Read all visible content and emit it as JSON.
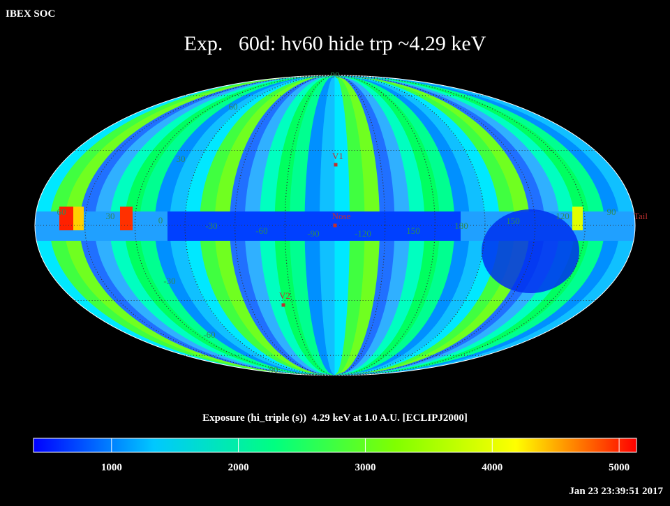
{
  "header": {
    "source": "IBEX SOC",
    "title": "Exp.   60d: hv60 hide trp ~4.29 keV",
    "timestamp": "Jan 23 23:39:51 2017"
  },
  "map": {
    "longitude_labels": [
      "60",
      "30",
      "0",
      "-30",
      "-60",
      "-90",
      "-120",
      "150",
      "180",
      "150",
      "120",
      "90"
    ],
    "latitude_labels": [
      "90",
      "60",
      "30",
      "-30",
      "-60",
      "-90"
    ],
    "markers": [
      {
        "label": "V1"
      },
      {
        "label": "Nose"
      },
      {
        "label": "V2"
      },
      {
        "label": "Tail"
      }
    ]
  },
  "colorbar": {
    "label": "Exposure (hi_triple (s))  4.29 keV at 1.0 A.U. [ECLIPJ2000]",
    "range": [
      385,
      5137
    ],
    "ticks": [
      1000,
      2000,
      3000,
      4000,
      5000
    ],
    "colors": [
      "#0000ff",
      "#00c8ff",
      "#00ff80",
      "#80ff00",
      "#ffff00",
      "#ff0000"
    ]
  }
}
